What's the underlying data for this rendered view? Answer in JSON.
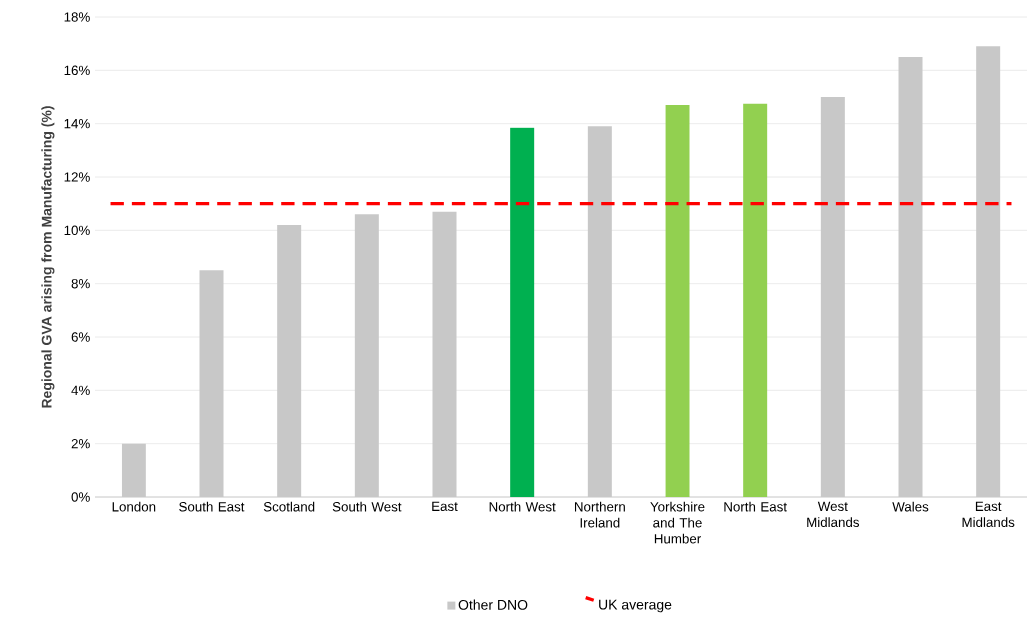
{
  "chart_data": {
    "type": "bar",
    "ylabel": "Regional GVA arising from Manufacturing (%)",
    "categories": [
      "London",
      "South East",
      "Scotland",
      "South West",
      "East",
      "North West",
      "Northern Ireland",
      "Yorkshire and The Humber",
      "North East",
      "West Midlands",
      "Wales",
      "East Midlands"
    ],
    "series": [
      {
        "color": "#00b050",
        "values": [
          null,
          null,
          null,
          null,
          null,
          13.85,
          null,
          null,
          null,
          null,
          null,
          null
        ]
      },
      {
        "color": "#92d050",
        "values": [
          null,
          null,
          null,
          null,
          null,
          null,
          null,
          14.7,
          14.75,
          null,
          null,
          null
        ]
      },
      {
        "name": "Other DNO",
        "color": "#c8c8c8",
        "values": [
          2.0,
          8.5,
          10.2,
          10.6,
          10.7,
          null,
          13.9,
          null,
          null,
          15.0,
          16.5,
          16.9
        ]
      }
    ],
    "ylim": [
      0,
      18
    ],
    "yticks": [
      {
        "value": 0,
        "label": "0%"
      },
      {
        "value": 2,
        "label": "2%"
      },
      {
        "value": 4,
        "label": "4%"
      },
      {
        "value": 6,
        "label": "6%"
      },
      {
        "value": 8,
        "label": "8%"
      },
      {
        "value": 10,
        "label": "10%"
      },
      {
        "value": 12,
        "label": "12%"
      },
      {
        "value": 14,
        "label": "14%"
      },
      {
        "value": 16,
        "label": "16%"
      },
      {
        "value": 18,
        "label": "18%"
      }
    ],
    "ref_lines": [
      {
        "axis": "y",
        "value": 11,
        "label": "UK average",
        "color": "#ff0000",
        "line_style": "dashed"
      }
    ],
    "grid": "y",
    "legend": "bottom"
  }
}
